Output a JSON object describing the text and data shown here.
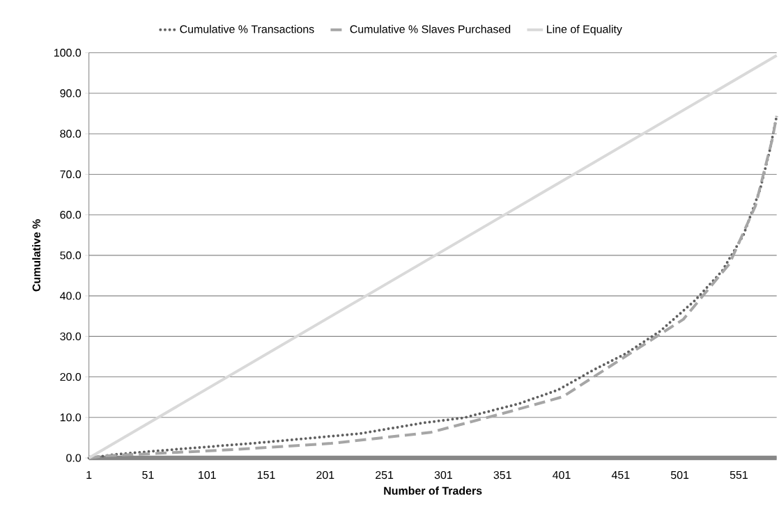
{
  "chart_data": {
    "type": "line",
    "xlabel": "Number of Traders",
    "ylabel": "Cumulative %",
    "xlim": [
      1,
      583
    ],
    "xticks": [
      1,
      51,
      101,
      151,
      201,
      251,
      301,
      351,
      401,
      451,
      501,
      551
    ],
    "ylim": [
      0,
      100
    ],
    "yticks": [
      {
        "value": 0,
        "label": "0.0"
      },
      {
        "value": 10,
        "label": "10.0"
      },
      {
        "value": 20,
        "label": "20.0"
      },
      {
        "value": 30,
        "label": "30.0"
      },
      {
        "value": 40,
        "label": "40.0"
      },
      {
        "value": 50,
        "label": "50.0"
      },
      {
        "value": 60,
        "label": "60.0"
      },
      {
        "value": 70,
        "label": "70.0"
      },
      {
        "value": 80,
        "label": "80.0"
      },
      {
        "value": 90,
        "label": "90.0"
      },
      {
        "value": 100,
        "label": "100.0"
      }
    ],
    "grid": "y",
    "legend": "top",
    "marker": "none",
    "series": [
      {
        "name": "Cumulative % Transactions",
        "color": "#5f5f5f",
        "line_style": "dotted",
        "x": [
          1,
          24,
          65,
          147,
          230,
          285,
          318,
          365,
          398,
          426,
          455,
          484,
          514,
          537,
          555,
          569,
          577,
          583
        ],
        "values": [
          0,
          0.9,
          1.9,
          3.8,
          6.0,
          8.7,
          9.9,
          13.4,
          16.8,
          21.4,
          25.7,
          31.2,
          38.9,
          46.2,
          55.1,
          66.3,
          75.7,
          84.4
        ]
      },
      {
        "name": "Cumulative % Slaves Purchased",
        "color": "#a6a6a6",
        "line_style": "dashed",
        "x": [
          1,
          14,
          126,
          206,
          290,
          324,
          359,
          402,
          443,
          504,
          543,
          565,
          579,
          583
        ],
        "values": [
          0,
          0.5,
          2.1,
          3.6,
          6.3,
          8.9,
          11.6,
          15.1,
          22.8,
          34.2,
          47.9,
          62.2,
          78.3,
          84.4
        ]
      },
      {
        "name": "Line of Equality",
        "color": "#d9d9d9",
        "line_style": "solid",
        "x": [
          1,
          583
        ],
        "values": [
          0,
          99.3
        ]
      }
    ]
  }
}
